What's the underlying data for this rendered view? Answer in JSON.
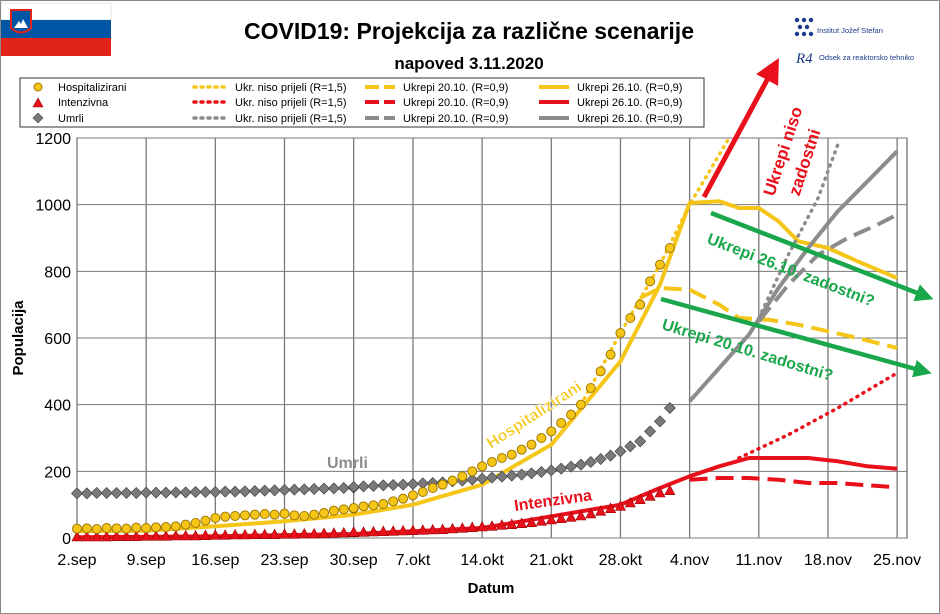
{
  "title": "COVID19: Projekcija za različne scenarije",
  "subtitle": "napoved 3.11.2020",
  "logos": {
    "ijs": "Institut Jožef Stefan",
    "r4_mark": "R4",
    "r4": "Odsek za reaktorsko tehniko"
  },
  "flag_colors": [
    "#ffffff",
    "#0055a4",
    "#e2231a"
  ],
  "legend": {
    "rows": [
      {
        "marker": "Hospitalizirani",
        "s1": "Ukr. niso prijeli (R=1,5)",
        "s2": "Ukrepi 20.10. (R=0,9)",
        "s3": "Ukrepi 26.10. (R=0,9)"
      },
      {
        "marker": "Intenzivna",
        "s1": "Ukr. niso prijeli (R=1,5)",
        "s2": "Ukrepi 20.10. (R=0,9)",
        "s3": "Ukrepi 26.10. (R=0,9)"
      },
      {
        "marker": "Umrli",
        "s1": "Ukr. niso prijeli (R=1,5)",
        "s2": "Ukrepi 20.10. (R=0,9)",
        "s3": "Ukrepi 26.10. (R=0,9)"
      }
    ]
  },
  "annotations": {
    "hosp": "Hospitalizirani",
    "umrli": "Umrli",
    "icu": "Intenzivna",
    "niso_1": "Ukrepi niso",
    "niso_2": "zadostni",
    "a2610": "Ukrepi 26.10. zadostni?",
    "a2010": "Ukrepi 20.10. zadostni?"
  },
  "colors": {
    "hosp": "#f5c518",
    "hosp_edge": "#a07800",
    "icu": "#e8101a",
    "umrli": "#8c8c8c",
    "umrli_marker": "#7a7a7a",
    "arrow_red": "#e8101a",
    "arrow_green": "#1aa64a",
    "grid": "#7a7a7a"
  },
  "chart_data": {
    "type": "line",
    "xlabel": "Datum",
    "ylabel": "Populacija",
    "ylim": [
      0,
      1200
    ],
    "yticks": [
      0,
      200,
      400,
      600,
      800,
      1000,
      1200
    ],
    "xticks": [
      "2.sep",
      "9.sep",
      "16.sep",
      "23.sep",
      "30.sep",
      "7.okt",
      "14.okt",
      "21.okt",
      "28.okt",
      "4.nov",
      "11.nov",
      "18.nov",
      "25.nov"
    ],
    "grid": true,
    "legend_position": "top",
    "observed": [
      {
        "name": "Hospitalizirani",
        "marker": "circle",
        "x": [
          "2.sep",
          "3.sep",
          "4.sep",
          "5.sep",
          "6.sep",
          "7.sep",
          "8.sep",
          "9.sep",
          "10.sep",
          "11.sep",
          "12.sep",
          "13.sep",
          "14.sep",
          "15.sep",
          "16.sep",
          "17.sep",
          "18.sep",
          "19.sep",
          "20.sep",
          "21.sep",
          "22.sep",
          "23.sep",
          "24.sep",
          "25.sep",
          "26.sep",
          "27.sep",
          "28.sep",
          "29.sep",
          "30.sep",
          "1.okt",
          "2.okt",
          "3.okt",
          "4.okt",
          "5.okt",
          "6.okt",
          "7.okt",
          "8.okt",
          "9.okt",
          "10.okt",
          "11.okt",
          "12.okt",
          "13.okt",
          "14.okt",
          "15.okt",
          "16.okt",
          "17.okt",
          "18.okt",
          "19.okt",
          "20.okt",
          "21.okt",
          "22.okt",
          "23.okt",
          "24.okt",
          "25.okt",
          "26.okt",
          "27.okt",
          "28.okt",
          "29.okt",
          "30.okt",
          "31.okt",
          "1.nov",
          "2.nov"
        ],
        "values": [
          28,
          29,
          27,
          30,
          29,
          28,
          31,
          30,
          32,
          33,
          35,
          40,
          45,
          52,
          60,
          64,
          66,
          68,
          70,
          72,
          70,
          73,
          68,
          66,
          70,
          75,
          82,
          86,
          88,
          90,
          95,
          98,
          102,
          110,
          118,
          128,
          138,
          150,
          160,
          172,
          185,
          200,
          215,
          228,
          240,
          250,
          265,
          280,
          300,
          320,
          345,
          370,
          400,
          450,
          500,
          550,
          615,
          660,
          700,
          770,
          820,
          870
        ]
      },
      {
        "name": "Intenzivna",
        "marker": "triangle",
        "x": [
          "2.sep",
          "3.sep",
          "4.sep",
          "5.sep",
          "6.sep",
          "7.sep",
          "8.sep",
          "9.sep",
          "10.sep",
          "11.sep",
          "12.sep",
          "13.sep",
          "14.sep",
          "15.sep",
          "16.sep",
          "17.sep",
          "18.sep",
          "19.sep",
          "20.sep",
          "21.sep",
          "22.sep",
          "23.sep",
          "24.sep",
          "25.sep",
          "26.sep",
          "27.sep",
          "28.sep",
          "29.sep",
          "30.sep",
          "1.okt",
          "2.okt",
          "3.okt",
          "4.okt",
          "5.okt",
          "6.okt",
          "7.okt",
          "8.okt",
          "9.okt",
          "10.okt",
          "11.okt",
          "12.okt",
          "13.okt",
          "14.okt",
          "15.okt",
          "16.okt",
          "17.okt",
          "18.okt",
          "19.okt",
          "20.okt",
          "21.okt",
          "22.okt",
          "23.okt",
          "24.okt",
          "25.okt",
          "26.okt",
          "27.okt",
          "28.okt",
          "29.okt",
          "30.okt",
          "31.okt",
          "1.nov",
          "2.nov"
        ],
        "values": [
          3,
          3,
          3,
          3,
          4,
          4,
          4,
          5,
          5,
          5,
          6,
          6,
          6,
          7,
          8,
          8,
          9,
          9,
          10,
          10,
          10,
          11,
          11,
          12,
          12,
          13,
          14,
          15,
          16,
          17,
          17,
          18,
          19,
          20,
          21,
          22,
          23,
          24,
          25,
          27,
          29,
          31,
          33,
          35,
          38,
          40,
          43,
          46,
          50,
          54,
          58,
          62,
          66,
          72,
          80,
          88,
          95,
          105,
          115,
          125,
          135,
          142
        ]
      },
      {
        "name": "Umrli",
        "marker": "diamond",
        "x": [
          "2.sep",
          "3.sep",
          "4.sep",
          "5.sep",
          "6.sep",
          "7.sep",
          "8.sep",
          "9.sep",
          "10.sep",
          "11.sep",
          "12.sep",
          "13.sep",
          "14.sep",
          "15.sep",
          "16.sep",
          "17.sep",
          "18.sep",
          "19.sep",
          "20.sep",
          "21.sep",
          "22.sep",
          "23.sep",
          "24.sep",
          "25.sep",
          "26.sep",
          "27.sep",
          "28.sep",
          "29.sep",
          "30.sep",
          "1.okt",
          "2.okt",
          "3.okt",
          "4.okt",
          "5.okt",
          "6.okt",
          "7.okt",
          "8.okt",
          "9.okt",
          "10.okt",
          "11.okt",
          "12.okt",
          "13.okt",
          "14.okt",
          "15.okt",
          "16.okt",
          "17.okt",
          "18.okt",
          "19.okt",
          "20.okt",
          "21.okt",
          "22.okt",
          "23.okt",
          "24.okt",
          "25.okt",
          "26.okt",
          "27.okt",
          "28.okt",
          "29.okt",
          "30.okt",
          "31.okt",
          "1.nov",
          "2.nov"
        ],
        "values": [
          134,
          134,
          135,
          135,
          135,
          135,
          135,
          136,
          136,
          136,
          137,
          137,
          138,
          138,
          138,
          139,
          139,
          140,
          141,
          142,
          143,
          144,
          145,
          146,
          147,
          148,
          149,
          150,
          151,
          153,
          155,
          156,
          158,
          159,
          160,
          162,
          164,
          165,
          167,
          170,
          172,
          175,
          178,
          181,
          184,
          187,
          190,
          194,
          198,
          203,
          208,
          214,
          220,
          228,
          237,
          247,
          260,
          275,
          290,
          320,
          350,
          390
        ]
      }
    ],
    "projections": [
      {
        "name": "Hospitalizirani – Ukr. niso prijeli (R=1,5)",
        "style": "dotted",
        "color": "hosp",
        "x": [
          "24.okt",
          "28.okt",
          "1.nov",
          "4.nov",
          "6.nov",
          "8.nov"
        ],
        "values": [
          400,
          615,
          820,
          1000,
          1100,
          1200
        ]
      },
      {
        "name": "Hospitalizirani – Ukrepi 20.10. (R=0,9)",
        "style": "dashed",
        "color": "hosp",
        "x": [
          "30.okt",
          "1.nov",
          "4.nov",
          "7.nov",
          "9.nov",
          "12.nov",
          "15.nov",
          "18.nov",
          "21.nov",
          "25.nov"
        ],
        "values": [
          720,
          750,
          745,
          700,
          660,
          655,
          640,
          620,
          600,
          570
        ]
      },
      {
        "name": "Hospitalizirani – Ukrepi 26.10. (R=0,9)",
        "style": "solid",
        "color": "hosp",
        "x": [
          "2.sep",
          "9.sep",
          "16.sep",
          "23.sep",
          "30.sep",
          "7.okt",
          "14.okt",
          "21.okt",
          "28.okt",
          "1.nov",
          "4.nov",
          "7.nov",
          "9.nov",
          "11.nov",
          "13.nov",
          "15.nov",
          "18.nov",
          "21.nov",
          "25.nov"
        ],
        "values": [
          20,
          22,
          35,
          50,
          70,
          100,
          160,
          280,
          530,
          760,
          1005,
          1010,
          990,
          990,
          950,
          890,
          870,
          830,
          780
        ]
      },
      {
        "name": "Intenzivna – Ukr. niso prijeli (R=1,5)",
        "style": "dotted",
        "color": "icu",
        "x": [
          "9.nov",
          "14.nov",
          "19.nov",
          "25.nov"
        ],
        "values": [
          240,
          310,
          390,
          495
        ]
      },
      {
        "name": "Intenzivna – Ukrepi 20.10. (R=0,9)",
        "style": "dashed",
        "color": "icu",
        "x": [
          "4.nov",
          "7.nov",
          "10.nov",
          "13.nov",
          "16.nov",
          "19.nov",
          "22.nov",
          "25.nov"
        ],
        "values": [
          175,
          180,
          180,
          175,
          165,
          165,
          158,
          152
        ]
      },
      {
        "name": "Intenzivna – Ukrepi 26.10. (R=0,9)",
        "style": "solid",
        "color": "icu",
        "x": [
          "2.sep",
          "16.sep",
          "30.sep",
          "14.okt",
          "28.okt",
          "1.nov",
          "4.nov",
          "7.nov",
          "10.nov",
          "13.nov",
          "16.nov",
          "19.nov",
          "22.nov",
          "25.nov"
        ],
        "values": [
          2,
          5,
          12,
          30,
          100,
          150,
          185,
          215,
          240,
          240,
          240,
          230,
          215,
          208
        ]
      },
      {
        "name": "Umrli – Ukr. niso prijeli (R=1,5)",
        "style": "dotted",
        "color": "umrli",
        "x": [
          "11.nov",
          "14.nov",
          "17.nov",
          "19.nov"
        ],
        "values": [
          660,
          850,
          1020,
          1180
        ]
      },
      {
        "name": "Umrli – Ukrepi 20.10. (R=0,9)",
        "style": "dashed",
        "color": "umrli",
        "x": [
          "11.nov",
          "14.nov",
          "17.nov",
          "20.nov",
          "23.nov",
          "25.nov"
        ],
        "values": [
          650,
          760,
          850,
          900,
          940,
          970
        ]
      },
      {
        "name": "Umrli – Ukrepi 26.10. (R=0,9)",
        "style": "solid",
        "color": "umrli",
        "x": [
          "4.nov",
          "7.nov",
          "10.nov",
          "13.nov",
          "16.nov",
          "19.nov",
          "22.nov",
          "25.nov"
        ],
        "values": [
          410,
          510,
          610,
          750,
          870,
          980,
          1070,
          1160
        ]
      }
    ]
  }
}
